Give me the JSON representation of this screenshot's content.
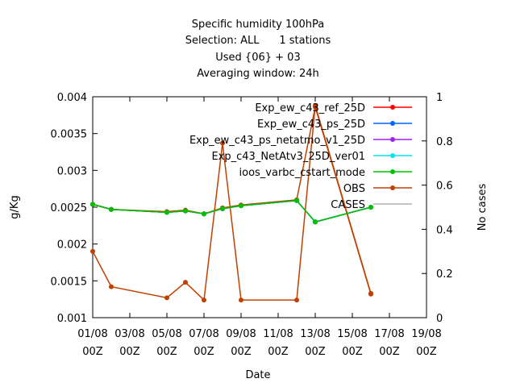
{
  "chart_data": {
    "type": "line",
    "title_lines": [
      "Specific humidity 100hPa",
      "Selection: ALL      1 stations",
      "Used {06} + 03",
      "Averaging window: 24h"
    ],
    "xlabel": "Date",
    "ylabel": "g/Kg",
    "y2label": "No cases",
    "xlim": [
      0,
      18
    ],
    "ylim": [
      0.001,
      0.004
    ],
    "y2lim": [
      0,
      1
    ],
    "x_tick_days": [
      0,
      2,
      4,
      6,
      8,
      10,
      12,
      14,
      16,
      18
    ],
    "x_tick_labels": [
      [
        "01/08",
        "00Z"
      ],
      [
        "03/08",
        "00Z"
      ],
      [
        "05/08",
        "00Z"
      ],
      [
        "07/08",
        "00Z"
      ],
      [
        "09/08",
        "00Z"
      ],
      [
        "11/08",
        "00Z"
      ],
      [
        "13/08",
        "00Z"
      ],
      [
        "15/08",
        "00Z"
      ],
      [
        "17/08",
        "00Z"
      ],
      [
        "19/08",
        "00Z"
      ]
    ],
    "y_ticks": [
      0.001,
      0.0015,
      0.002,
      0.0025,
      0.003,
      0.0035,
      0.004
    ],
    "y_tick_labels": [
      "0.001",
      "0.0015",
      "0.002",
      "0.0025",
      "0.003",
      "0.0035",
      "0.004"
    ],
    "y2_ticks": [
      0,
      0.2,
      0.4,
      0.6,
      0.8,
      1
    ],
    "y2_tick_labels": [
      "0",
      "0.2",
      "0.4",
      "0.6",
      "0.8",
      "1"
    ],
    "legend_position": "top-right",
    "grid": false,
    "series": [
      {
        "name": "Exp_ew_c43_ref_25D",
        "color": "#ff0000",
        "axis": "y",
        "x": [
          0,
          1,
          4,
          5,
          6,
          7,
          8,
          11,
          12,
          15
        ],
        "y": [
          0.00254,
          0.00247,
          0.00243,
          0.00245,
          0.00241,
          0.00248,
          0.00252,
          0.00259,
          0.0023,
          0.0025
        ]
      },
      {
        "name": "Exp_ew_c43_ps_25D",
        "color": "#0066ff",
        "axis": "y",
        "x": [
          0,
          1,
          4,
          5,
          6,
          7,
          8,
          11,
          12,
          15
        ],
        "y": [
          0.00254,
          0.00247,
          0.00243,
          0.00245,
          0.00241,
          0.00248,
          0.00252,
          0.00259,
          0.0023,
          0.0025
        ]
      },
      {
        "name": "Exp_ew_c43_ps_netatmo_v1_25D",
        "color": "#a020f0",
        "axis": "y",
        "x": [
          0,
          1,
          4,
          5,
          6,
          7,
          8,
          11,
          12,
          15
        ],
        "y": [
          0.00254,
          0.00247,
          0.00243,
          0.00245,
          0.00241,
          0.00248,
          0.00252,
          0.00259,
          0.0023,
          0.0025
        ]
      },
      {
        "name": "Exp_c43_NetAtv3_25D_ver01",
        "color": "#00e5ee",
        "axis": "y",
        "x": [
          0,
          1,
          4,
          5,
          6,
          7,
          8,
          11,
          12,
          15
        ],
        "y": [
          0.00254,
          0.00247,
          0.00243,
          0.00245,
          0.00241,
          0.00248,
          0.00252,
          0.00259,
          0.0023,
          0.0025
        ]
      },
      {
        "name": "ioos_varbc_cstart_mode",
        "color": "#00c000",
        "axis": "y",
        "x": [
          0,
          1,
          4,
          5,
          6,
          7,
          8,
          11,
          12,
          15
        ],
        "y": [
          0.00254,
          0.00247,
          0.00243,
          0.00245,
          0.00241,
          0.00248,
          0.00252,
          0.00259,
          0.0023,
          0.0025
        ]
      },
      {
        "name": "OBS",
        "color": "#c04000",
        "axis": "y",
        "x": [
          0,
          1,
          4,
          5,
          6,
          7,
          8,
          11,
          12,
          15
        ],
        "y": [
          0.00254,
          0.00247,
          0.00244,
          0.00246,
          0.00241,
          0.00249,
          0.00253,
          0.0026,
          0.00386,
          0.00132
        ]
      },
      {
        "name": "CASES",
        "color": "#c04000",
        "axis": "y2",
        "x": [
          0,
          1,
          4,
          5,
          6,
          7,
          8,
          11,
          12,
          15
        ],
        "y": [
          0.3,
          0.14,
          0.09,
          0.16,
          0.08,
          0.79,
          0.08,
          0.08,
          0.96,
          0.11
        ]
      }
    ]
  }
}
